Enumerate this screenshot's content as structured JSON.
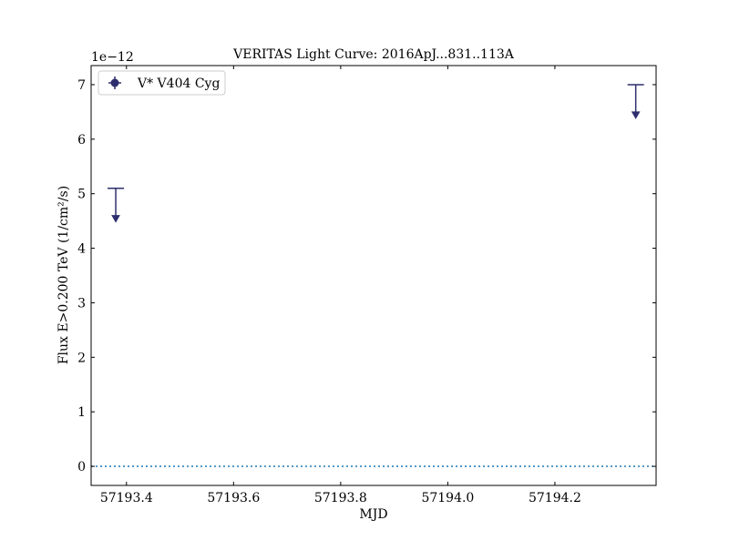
{
  "chart_data": {
    "type": "scatter",
    "title": "VERITAS Light Curve: 2016ApJ...831..113A",
    "xlabel": "MJD",
    "ylabel": "Flux E>0.200 TeV (1/cm²/s)",
    "y_offset_label": "1e−12",
    "y_scale_factor": 1e-12,
    "xlim": [
      57193.334,
      57194.389
    ],
    "ylim": [
      -0.35,
      7.35
    ],
    "x_ticks": [
      57193.4,
      57193.6,
      57193.8,
      57194.0,
      57194.2
    ],
    "x_tick_labels": [
      "57193.4",
      "57193.6",
      "57193.8",
      "57194.0",
      "57194.2"
    ],
    "y_ticks": [
      0,
      1,
      2,
      3,
      4,
      5,
      6,
      7
    ],
    "y_tick_labels": [
      "0",
      "1",
      "2",
      "3",
      "4",
      "5",
      "6",
      "7"
    ],
    "grid": false,
    "legend_position": "top-left",
    "reference_line": {
      "y": 0,
      "style": "dotted",
      "color": "#1f77b4"
    },
    "series": [
      {
        "name": "V* V404 Cyg",
        "color": "#2e2e6e",
        "upper_limits": [
          {
            "x": 57193.38,
            "y": 5.1
          },
          {
            "x": 57194.351,
            "y": 7.0
          }
        ]
      }
    ]
  }
}
